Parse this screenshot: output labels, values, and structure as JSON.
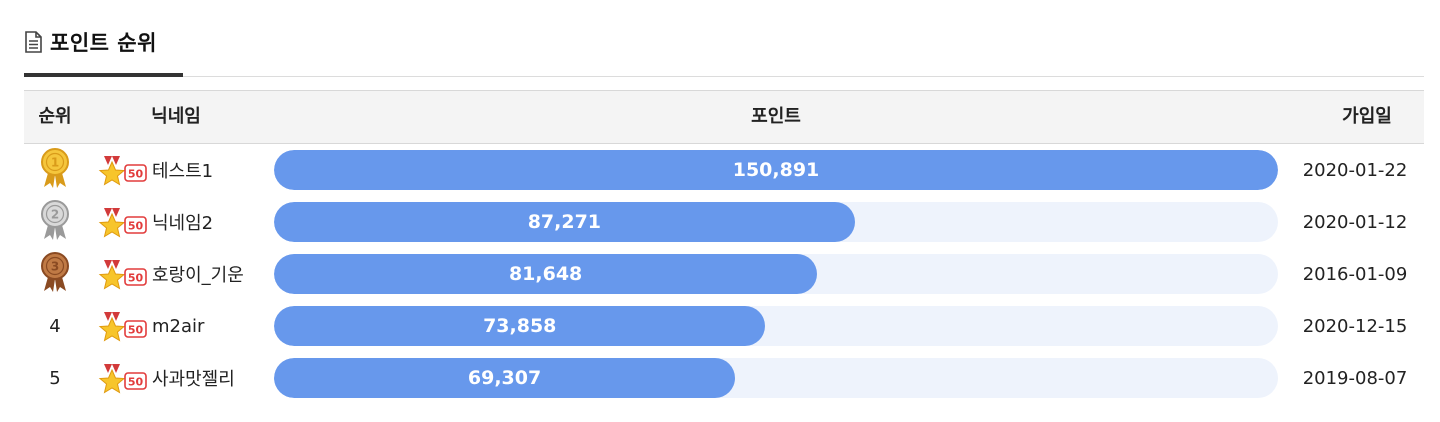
{
  "section": {
    "title": "포인트 순위",
    "icon": "document-icon"
  },
  "columns": {
    "rank": "순위",
    "nickname": "닉네임",
    "points": "포인트",
    "joined": "가입일"
  },
  "colors": {
    "bar_fill": "#6798ec",
    "bar_track": "#eef3fc",
    "gold": "#e8b83a",
    "silver": "#c4c4c4",
    "bronze": "#b06a3a"
  },
  "rows": [
    {
      "rank": "1",
      "medal": "gold-medal-icon",
      "level_badge": "50",
      "nickname": "테스트1",
      "points": "150,891",
      "points_value": 150891,
      "joined": "2020-01-22"
    },
    {
      "rank": "2",
      "medal": "silver-medal-icon",
      "level_badge": "50",
      "nickname": "닉네임2",
      "points": "87,271",
      "points_value": 87271,
      "joined": "2020-01-12"
    },
    {
      "rank": "3",
      "medal": "bronze-medal-icon",
      "level_badge": "50",
      "nickname": "호랑이_기운",
      "points": "81,648",
      "points_value": 81648,
      "joined": "2016-01-09"
    },
    {
      "rank": "4",
      "medal": "",
      "level_badge": "50",
      "nickname": "m2air",
      "points": "73,858",
      "points_value": 73858,
      "joined": "2020-12-15"
    },
    {
      "rank": "5",
      "medal": "",
      "level_badge": "50",
      "nickname": "사과맛젤리",
      "points": "69,307",
      "points_value": 69307,
      "joined": "2019-08-07"
    }
  ]
}
